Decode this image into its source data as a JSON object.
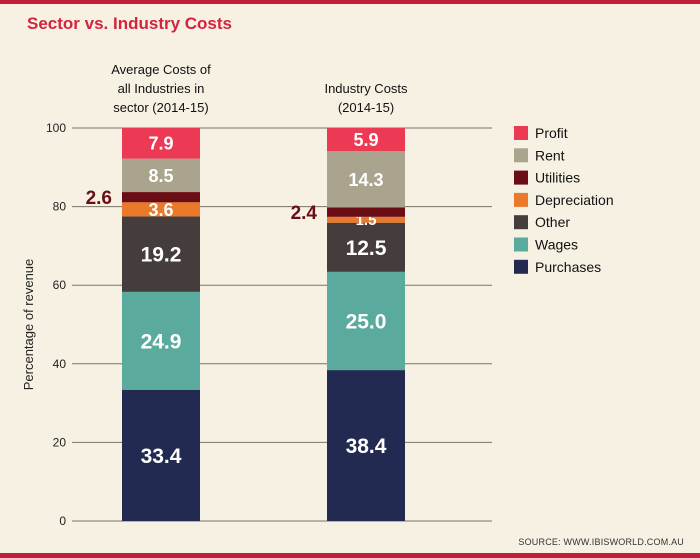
{
  "title": "Sector vs. Industry Costs",
  "source": "SOURCE: WWW.IBISWORLD.COM.AU",
  "chart_data": {
    "type": "bar",
    "stacked": true,
    "ylabel": "Percentage of revenue",
    "ylim": [
      0,
      100
    ],
    "yticks": [
      0,
      20,
      40,
      60,
      80,
      100
    ],
    "grid": true,
    "legend_position": "right",
    "categories": [
      [
        "Average Costs of",
        "all Industries in",
        "sector (2014-15)"
      ],
      [
        "Industry Costs",
        "(2014-15)"
      ]
    ],
    "series": [
      {
        "name": "Purchases",
        "color": "#232a52",
        "values": [
          33.4,
          38.4
        ]
      },
      {
        "name": "Wages",
        "color": "#5aaa9e",
        "values": [
          24.9,
          25.0
        ]
      },
      {
        "name": "Other",
        "color": "#453d3b",
        "values": [
          19.2,
          12.5
        ]
      },
      {
        "name": "Depreciation",
        "color": "#ea7a2a",
        "values": [
          3.6,
          1.5
        ]
      },
      {
        "name": "Utilities",
        "color": "#6b0d15",
        "values": [
          2.6,
          2.4
        ]
      },
      {
        "name": "Rent",
        "color": "#aaa48e",
        "values": [
          8.5,
          14.3
        ]
      },
      {
        "name": "Profit",
        "color": "#ec3a55",
        "values": [
          7.9,
          5.9
        ]
      }
    ],
    "legend_order": [
      "Profit",
      "Rent",
      "Utilities",
      "Depreciation",
      "Other",
      "Wages",
      "Purchases"
    ],
    "outside_label_series": "Utilities",
    "outside_label_color": "#6b0d15"
  }
}
